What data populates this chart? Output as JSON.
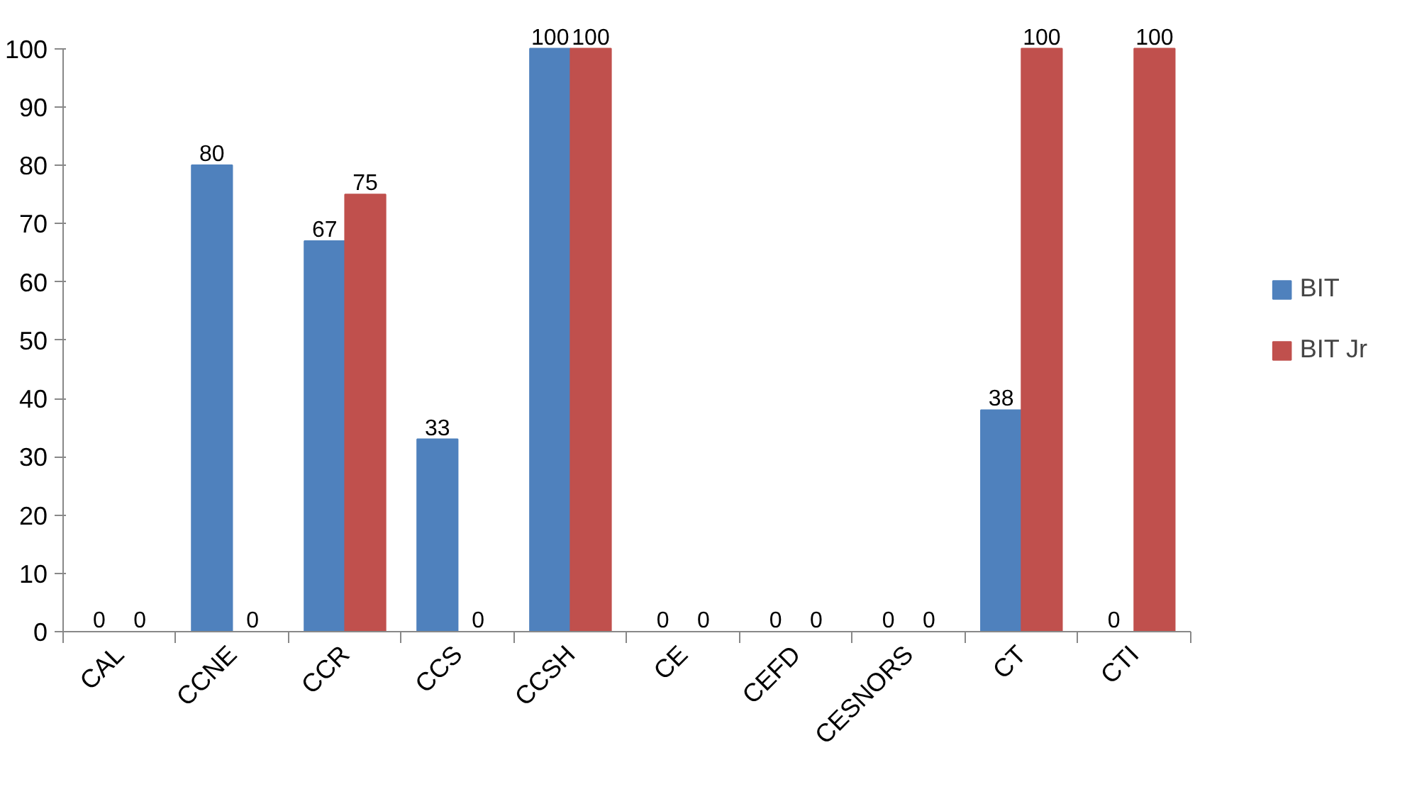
{
  "chart_data": {
    "type": "bar",
    "categories": [
      "CAL",
      "CCNE",
      "CCR",
      "CCS",
      "CCSH",
      "CE",
      "CEFD",
      "CESNORS",
      "CT",
      "CTI"
    ],
    "series": [
      {
        "name": "BIT",
        "color": "#4f81bd",
        "values": [
          0,
          80,
          67,
          33,
          100,
          0,
          0,
          0,
          38,
          0
        ]
      },
      {
        "name": "BIT Jr",
        "color": "#c0504d",
        "values": [
          0,
          0,
          75,
          0,
          100,
          0,
          0,
          0,
          100,
          100
        ]
      }
    ],
    "ylim": [
      0,
      100
    ],
    "yticks": [
      0,
      10,
      20,
      30,
      40,
      50,
      60,
      70,
      80,
      90,
      100
    ],
    "grid": false,
    "legend": "right",
    "data_labels": true
  }
}
